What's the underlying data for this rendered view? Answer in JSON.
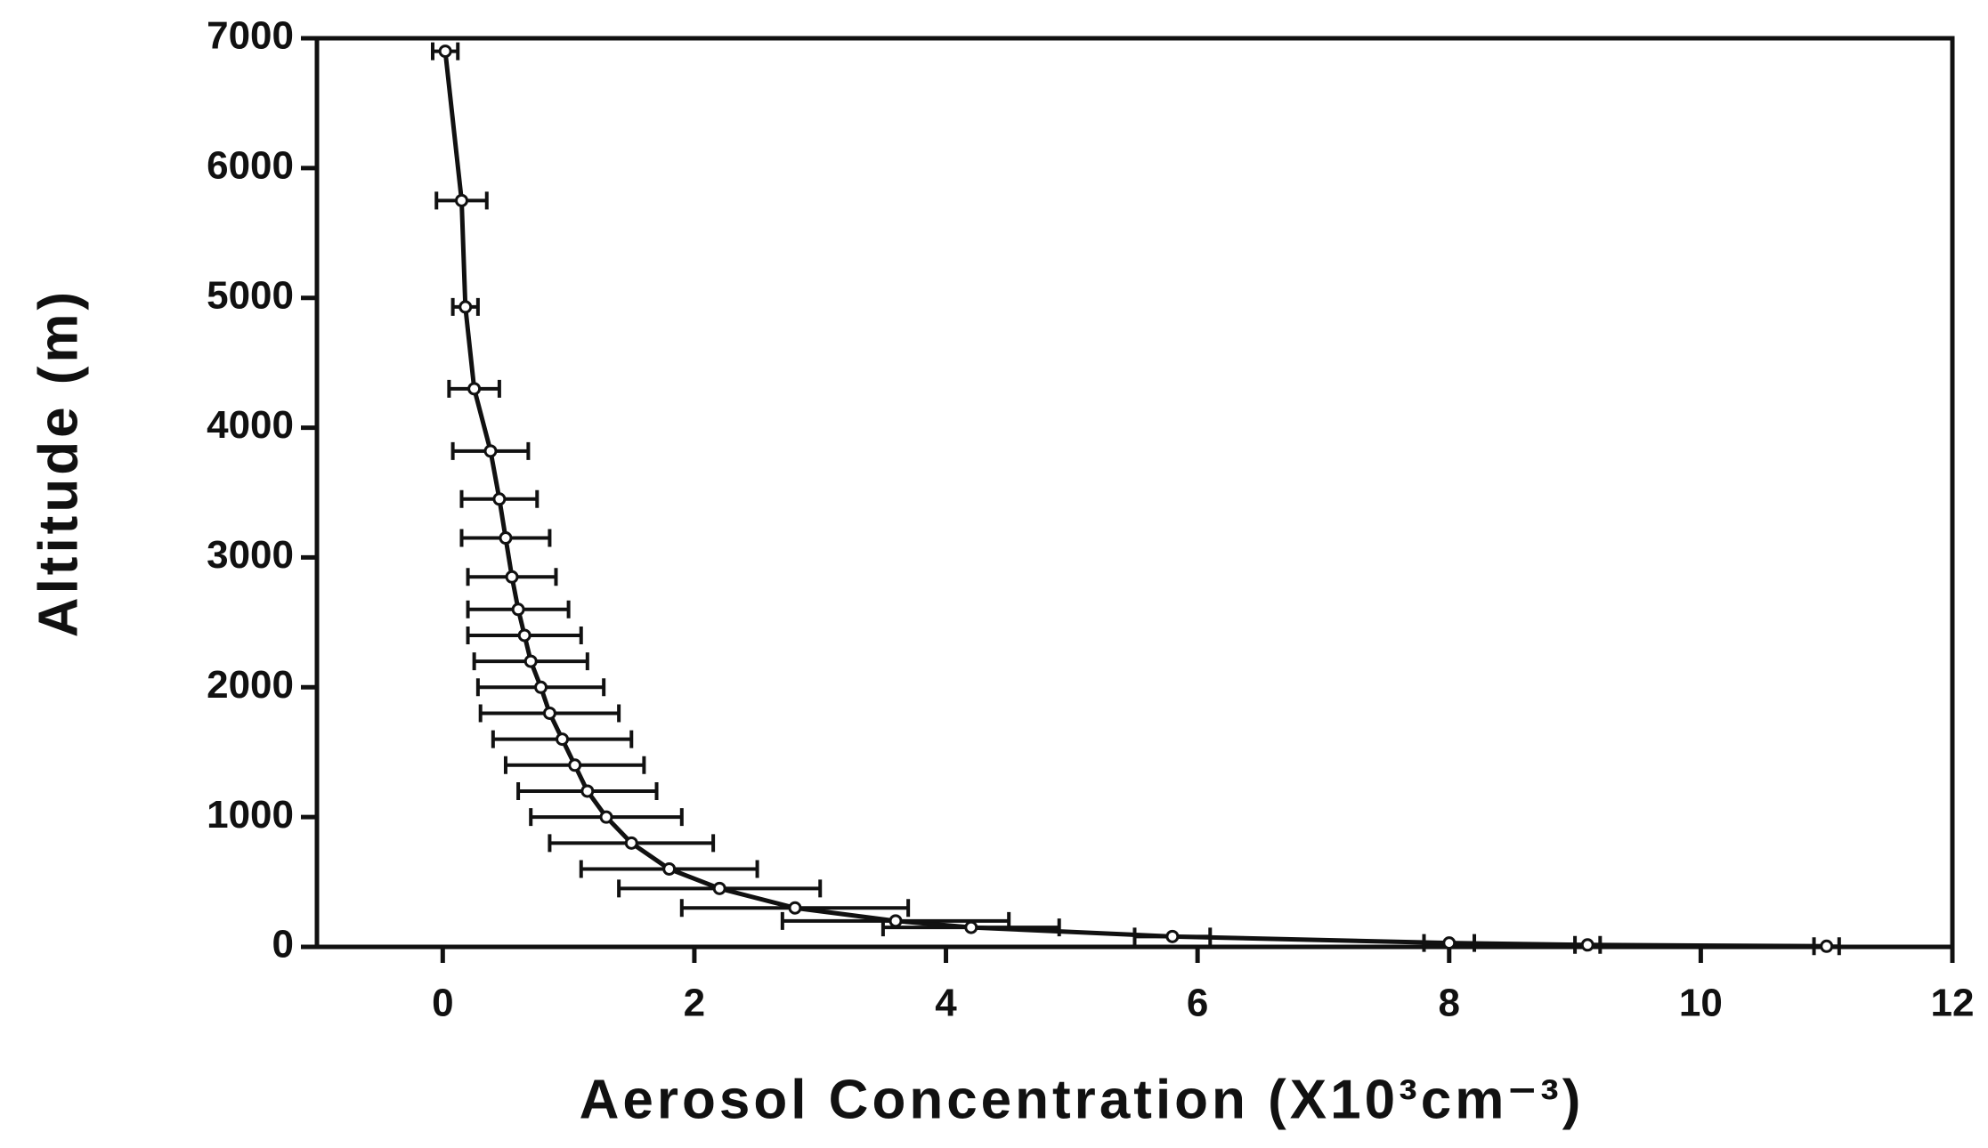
{
  "chart_data": {
    "type": "line",
    "xlabel": "Aerosol Concentration (X10³cm⁻³)",
    "ylabel": "Altitude (m)",
    "xlim": [
      -1,
      12
    ],
    "xticks": [
      0,
      2,
      4,
      6,
      8,
      10,
      12
    ],
    "ylim": [
      0,
      7000
    ],
    "yticks": [
      0,
      1000,
      2000,
      3000,
      4000,
      5000,
      6000,
      7000
    ],
    "series": [
      {
        "color": "#111111",
        "x": [
          0.02,
          0.15,
          0.18,
          0.25,
          0.38,
          0.45,
          0.5,
          0.55,
          0.6,
          0.65,
          0.7,
          0.78,
          0.85,
          0.95,
          1.05,
          1.15,
          1.3,
          1.5,
          1.8,
          2.2,
          2.8,
          3.6,
          4.2,
          5.8,
          8.0,
          9.1,
          11.0
        ],
        "values": [
          6900,
          5750,
          4930,
          4300,
          3820,
          3450,
          3150,
          2850,
          2600,
          2400,
          2200,
          2000,
          1800,
          1600,
          1400,
          1200,
          1000,
          800,
          600,
          450,
          300,
          200,
          150,
          80,
          30,
          15,
          5
        ],
        "xerr": [
          0.1,
          0.2,
          0.1,
          0.2,
          0.3,
          0.3,
          0.35,
          0.35,
          0.4,
          0.45,
          0.45,
          0.5,
          0.55,
          0.55,
          0.55,
          0.55,
          0.6,
          0.65,
          0.7,
          0.8,
          0.9,
          0.9,
          0.7,
          0.3,
          0.2,
          0.1,
          0.1
        ]
      }
    ]
  }
}
